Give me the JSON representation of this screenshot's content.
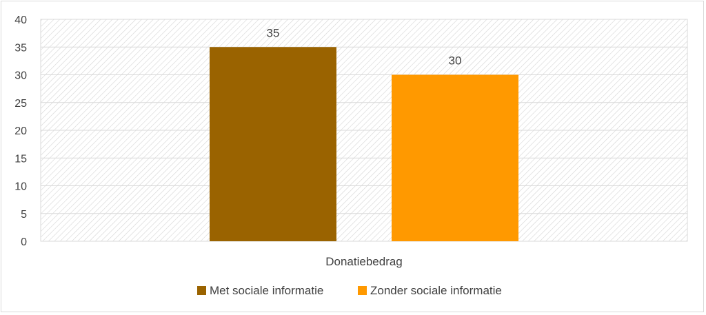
{
  "chart_data": {
    "type": "bar",
    "categories": [
      "Donatiebedrag"
    ],
    "series": [
      {
        "name": "Met sociale informatie",
        "values": [
          35
        ],
        "color": "#9a6300"
      },
      {
        "name": "Zonder sociale informatie",
        "values": [
          30
        ],
        "color": "#ff9900"
      }
    ],
    "title": "",
    "xlabel": "",
    "ylabel": "",
    "ylim": [
      0,
      40
    ],
    "yticks": [
      0,
      5,
      10,
      15,
      20,
      25,
      30,
      35,
      40
    ],
    "grid": true,
    "legend_position": "bottom",
    "data_labels": true
  }
}
